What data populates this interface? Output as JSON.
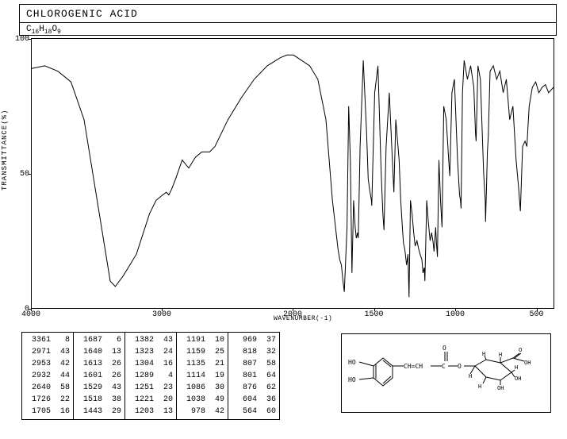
{
  "header": {
    "title": "CHLOROGENIC ACID",
    "formula_parts": [
      "C",
      "16",
      "H",
      "18",
      "O",
      "9"
    ]
  },
  "axes": {
    "ylabel": "TRANSMITTANCE(%)",
    "xlabel": "WAVENUMBER(-1)",
    "y_ticks": [
      {
        "label": "100",
        "t": 0
      },
      {
        "label": "50",
        "t": 50
      },
      {
        "label": "0",
        "t": 100
      }
    ],
    "x_ticks": [
      {
        "label": "4000",
        "v": 4000
      },
      {
        "label": "3000",
        "v": 3000
      },
      {
        "label": "2000",
        "v": 2000
      },
      {
        "label": "1500",
        "v": 1500
      },
      {
        "label": "1000",
        "v": 1000
      },
      {
        "label": "500",
        "v": 500
      }
    ],
    "xlim": [
      4000,
      400
    ],
    "ylim": [
      0,
      100
    ]
  },
  "spectrum": {
    "type": "line",
    "line_color": "#000000",
    "line_width": 1,
    "background": "#ffffff",
    "points": [
      [
        4000,
        89
      ],
      [
        3900,
        90
      ],
      [
        3800,
        88
      ],
      [
        3700,
        84
      ],
      [
        3600,
        70
      ],
      [
        3500,
        40
      ],
      [
        3400,
        10
      ],
      [
        3361,
        8
      ],
      [
        3300,
        12
      ],
      [
        3200,
        20
      ],
      [
        3100,
        35
      ],
      [
        3050,
        40
      ],
      [
        3000,
        42
      ],
      [
        2971,
        43
      ],
      [
        2953,
        42
      ],
      [
        2932,
        44
      ],
      [
        2900,
        48
      ],
      [
        2850,
        55
      ],
      [
        2800,
        52
      ],
      [
        2750,
        56
      ],
      [
        2700,
        58
      ],
      [
        2640,
        58
      ],
      [
        2600,
        60
      ],
      [
        2500,
        70
      ],
      [
        2400,
        78
      ],
      [
        2300,
        85
      ],
      [
        2200,
        90
      ],
      [
        2100,
        93
      ],
      [
        2050,
        94
      ],
      [
        2000,
        94
      ],
      [
        1950,
        92
      ],
      [
        1900,
        90
      ],
      [
        1850,
        85
      ],
      [
        1800,
        70
      ],
      [
        1760,
        40
      ],
      [
        1726,
        22
      ],
      [
        1715,
        18
      ],
      [
        1705,
        16
      ],
      [
        1695,
        10
      ],
      [
        1687,
        6
      ],
      [
        1670,
        30
      ],
      [
        1660,
        75
      ],
      [
        1650,
        55
      ],
      [
        1640,
        13
      ],
      [
        1630,
        40
      ],
      [
        1620,
        30
      ],
      [
        1613,
        26
      ],
      [
        1605,
        28
      ],
      [
        1601,
        26
      ],
      [
        1590,
        60
      ],
      [
        1570,
        92
      ],
      [
        1550,
        65
      ],
      [
        1540,
        48
      ],
      [
        1529,
        43
      ],
      [
        1520,
        40
      ],
      [
        1518,
        38
      ],
      [
        1500,
        80
      ],
      [
        1480,
        90
      ],
      [
        1460,
        50
      ],
      [
        1450,
        35
      ],
      [
        1443,
        29
      ],
      [
        1430,
        60
      ],
      [
        1410,
        80
      ],
      [
        1395,
        60
      ],
      [
        1382,
        43
      ],
      [
        1370,
        70
      ],
      [
        1350,
        55
      ],
      [
        1340,
        40
      ],
      [
        1330,
        30
      ],
      [
        1323,
        24
      ],
      [
        1315,
        22
      ],
      [
        1304,
        16
      ],
      [
        1295,
        20
      ],
      [
        1289,
        4
      ],
      [
        1280,
        40
      ],
      [
        1270,
        35
      ],
      [
        1260,
        28
      ],
      [
        1251,
        23
      ],
      [
        1240,
        25
      ],
      [
        1230,
        22
      ],
      [
        1221,
        20
      ],
      [
        1210,
        18
      ],
      [
        1203,
        13
      ],
      [
        1195,
        15
      ],
      [
        1191,
        10
      ],
      [
        1180,
        40
      ],
      [
        1170,
        32
      ],
      [
        1159,
        25
      ],
      [
        1150,
        28
      ],
      [
        1140,
        24
      ],
      [
        1135,
        21
      ],
      [
        1125,
        30
      ],
      [
        1120,
        24
      ],
      [
        1114,
        19
      ],
      [
        1105,
        55
      ],
      [
        1095,
        40
      ],
      [
        1086,
        30
      ],
      [
        1075,
        75
      ],
      [
        1060,
        70
      ],
      [
        1050,
        60
      ],
      [
        1045,
        55
      ],
      [
        1038,
        49
      ],
      [
        1025,
        80
      ],
      [
        1010,
        85
      ],
      [
        1000,
        70
      ],
      [
        990,
        55
      ],
      [
        978,
        42
      ],
      [
        972,
        40
      ],
      [
        969,
        37
      ],
      [
        960,
        80
      ],
      [
        950,
        92
      ],
      [
        930,
        85
      ],
      [
        910,
        90
      ],
      [
        890,
        82
      ],
      [
        880,
        65
      ],
      [
        876,
        62
      ],
      [
        865,
        90
      ],
      [
        850,
        85
      ],
      [
        830,
        50
      ],
      [
        820,
        40
      ],
      [
        818,
        32
      ],
      [
        812,
        45
      ],
      [
        807,
        58
      ],
      [
        803,
        62
      ],
      [
        801,
        64
      ],
      [
        790,
        88
      ],
      [
        770,
        90
      ],
      [
        750,
        85
      ],
      [
        730,
        88
      ],
      [
        710,
        80
      ],
      [
        690,
        85
      ],
      [
        670,
        70
      ],
      [
        650,
        75
      ],
      [
        630,
        55
      ],
      [
        615,
        45
      ],
      [
        604,
        36
      ],
      [
        590,
        60
      ],
      [
        575,
        62
      ],
      [
        564,
        60
      ],
      [
        550,
        75
      ],
      [
        530,
        82
      ],
      [
        510,
        84
      ],
      [
        490,
        80
      ],
      [
        470,
        82
      ],
      [
        450,
        83
      ],
      [
        430,
        80
      ],
      [
        400,
        82
      ]
    ]
  },
  "peak_columns": [
    [
      [
        3361,
        8
      ],
      [
        2971,
        43
      ],
      [
        2953,
        42
      ],
      [
        2932,
        44
      ],
      [
        2640,
        58
      ],
      [
        1726,
        22
      ],
      [
        1705,
        16
      ]
    ],
    [
      [
        1687,
        6
      ],
      [
        1640,
        13
      ],
      [
        1613,
        26
      ],
      [
        1601,
        26
      ],
      [
        1529,
        43
      ],
      [
        1518,
        38
      ],
      [
        1443,
        29
      ]
    ],
    [
      [
        1382,
        43
      ],
      [
        1323,
        24
      ],
      [
        1304,
        16
      ],
      [
        1289,
        4
      ],
      [
        1251,
        23
      ],
      [
        1221,
        20
      ],
      [
        1203,
        13
      ]
    ],
    [
      [
        1191,
        10
      ],
      [
        1159,
        25
      ],
      [
        1135,
        21
      ],
      [
        1114,
        19
      ],
      [
        1086,
        30
      ],
      [
        1038,
        49
      ],
      [
        978,
        42
      ]
    ],
    [
      [
        969,
        37
      ],
      [
        818,
        32
      ],
      [
        807,
        58
      ],
      [
        801,
        64
      ],
      [
        876,
        62
      ],
      [
        604,
        36
      ],
      [
        564,
        60
      ]
    ]
  ],
  "structure": {
    "labels": [
      "HO",
      "HO",
      "CH=CH",
      "C",
      "O",
      "O",
      "OH",
      "OH",
      "H",
      "H",
      "H",
      "H",
      "OH",
      "COOH"
    ]
  }
}
